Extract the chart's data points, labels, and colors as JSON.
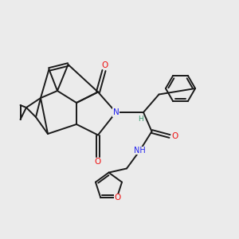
{
  "background_color": "#ebebeb",
  "bond_color": "#1a1a1a",
  "bond_width": 1.4,
  "N_color": "#2020ee",
  "O_color": "#ee1010",
  "H_color": "#3a9a70",
  "figsize": [
    3.0,
    3.0
  ],
  "dpi": 100,
  "xlim": [
    0,
    10
  ],
  "ylim": [
    0,
    10
  ]
}
